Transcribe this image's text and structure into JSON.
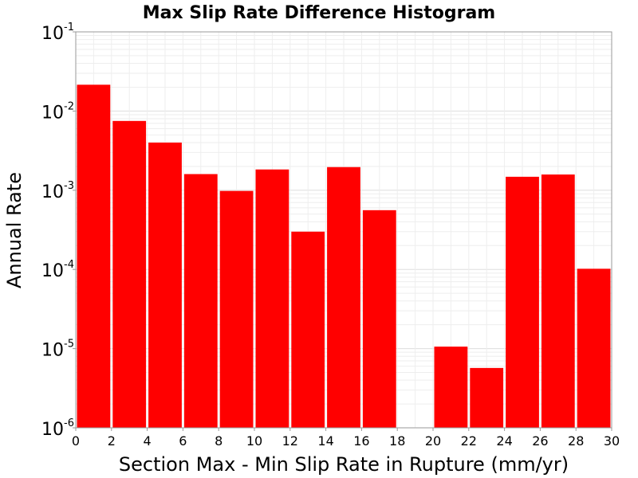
{
  "chart_data": {
    "type": "bar",
    "title": "Max Slip Rate Difference Histogram",
    "xlabel": "Section Max - Min Slip Rate in Rupture (mm/yr)",
    "ylabel": "Annual Rate",
    "xlim": [
      0,
      30
    ],
    "ylim": [
      1e-06,
      0.1
    ],
    "yscale": "log",
    "grid": true,
    "bar_color": "#ff0000",
    "bin_width": 2,
    "x": [
      1,
      3,
      5,
      7,
      9,
      11,
      13,
      15,
      17,
      19,
      21,
      23,
      25,
      27,
      29
    ],
    "values": [
      0.0215,
      0.0075,
      0.004,
      0.0016,
      0.00098,
      0.00183,
      0.0003,
      0.00196,
      0.00056,
      0,
      1.06e-05,
      5.7e-06,
      0.00148,
      0.00158,
      0.000102
    ],
    "xticks": [
      "0",
      "2",
      "4",
      "6",
      "8",
      "10",
      "12",
      "14",
      "16",
      "18",
      "20",
      "22",
      "24",
      "26",
      "28",
      "30"
    ],
    "yticks": [
      {
        "base": "10",
        "exp": "-1",
        "value": 0.1
      },
      {
        "base": "10",
        "exp": "-2",
        "value": 0.01
      },
      {
        "base": "10",
        "exp": "-3",
        "value": 0.001
      },
      {
        "base": "10",
        "exp": "-4",
        "value": 0.0001
      },
      {
        "base": "10",
        "exp": "-5",
        "value": 1e-05
      },
      {
        "base": "10",
        "exp": "-6",
        "value": 1e-06
      }
    ]
  }
}
